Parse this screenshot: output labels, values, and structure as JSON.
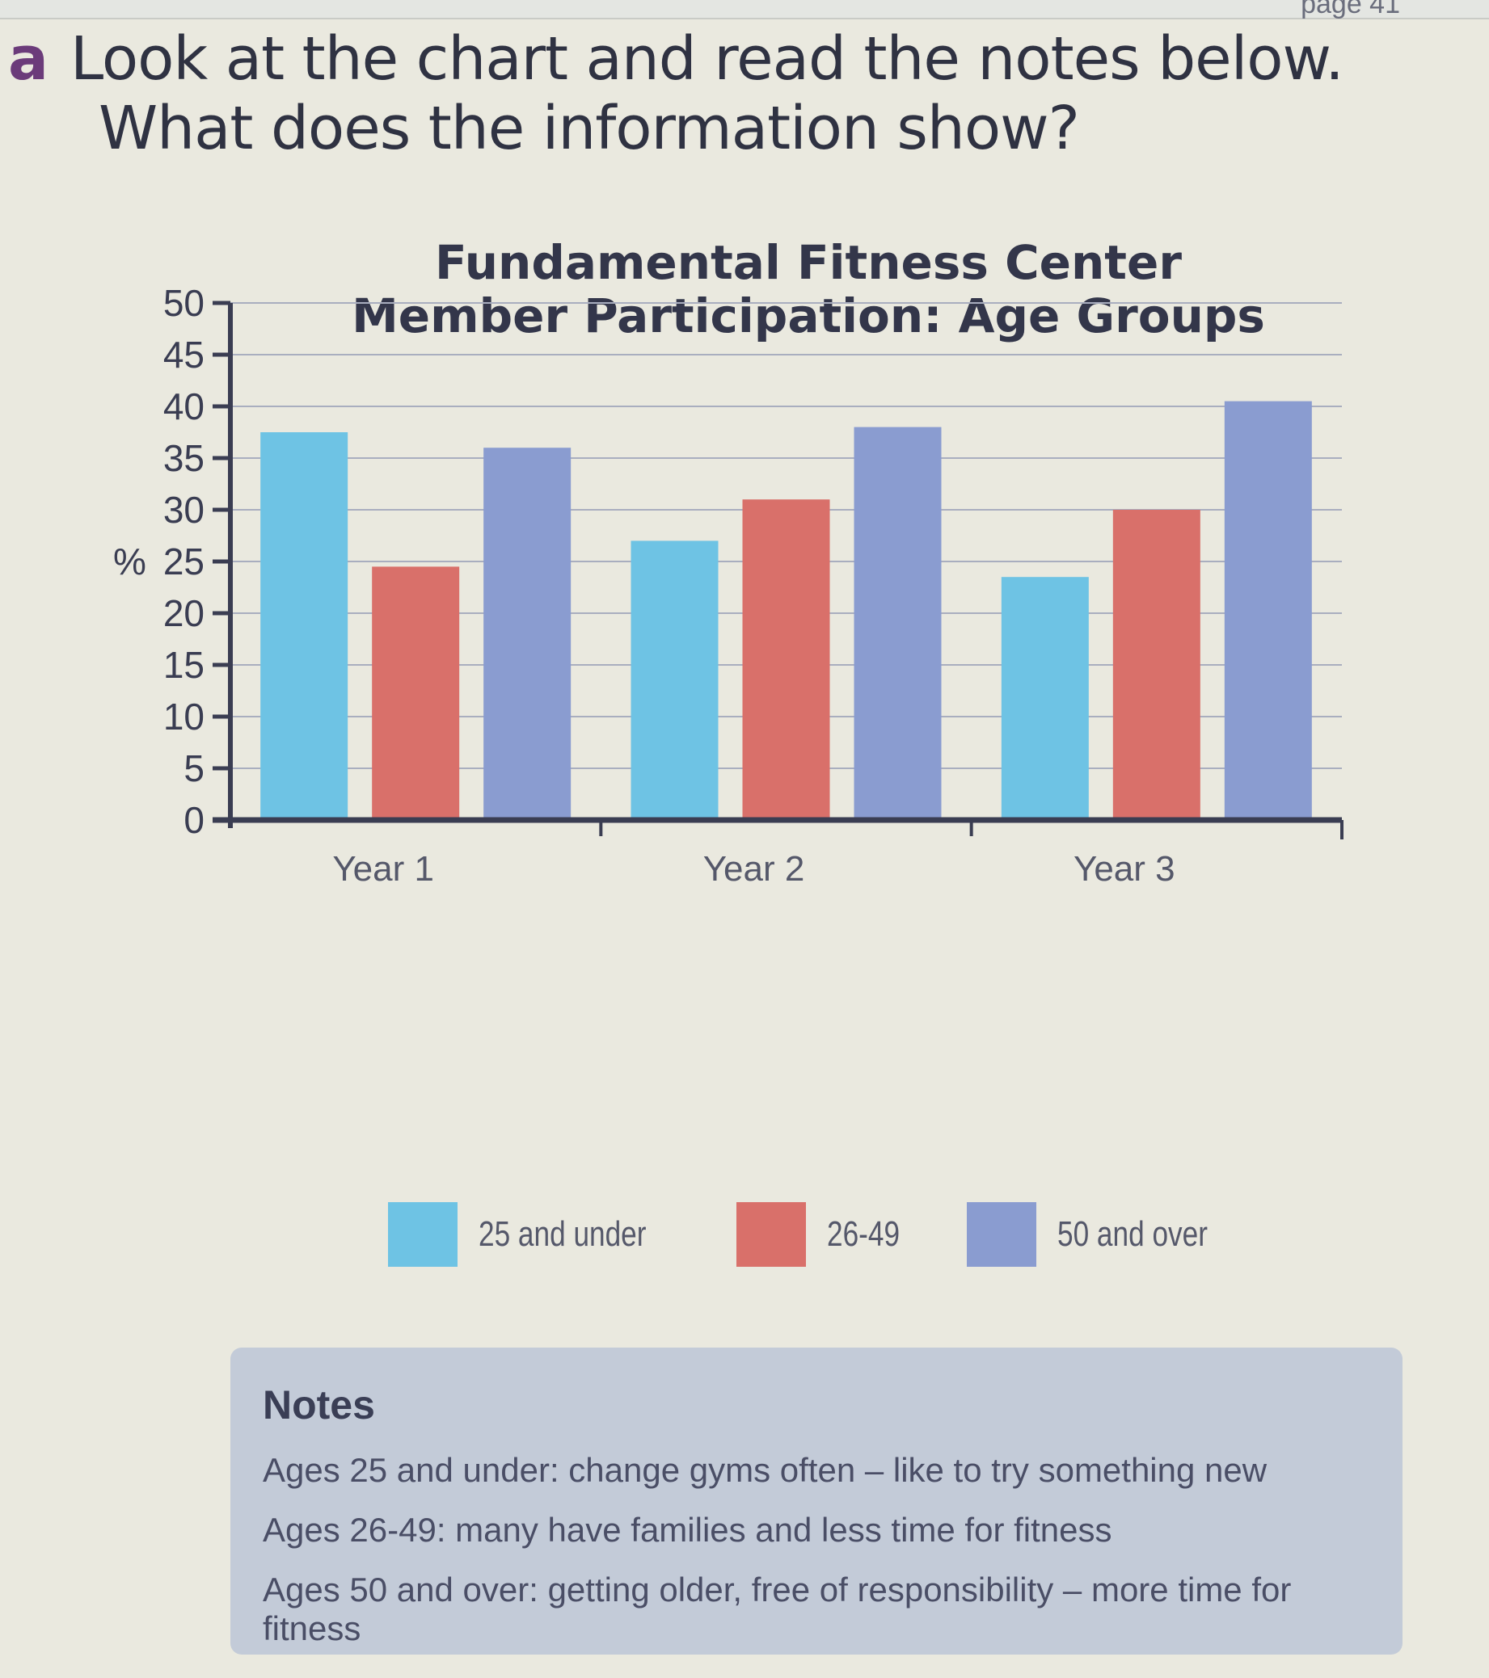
{
  "header": {
    "page_ref": "page 41"
  },
  "question": {
    "marker": "a",
    "line1": "Look at the chart and read the notes below.",
    "line2": "What does the information show?"
  },
  "chart": {
    "title_line1": "Fundamental Fitness Center",
    "title_line2": "Member Participation: Age Groups",
    "y_axis_label": "%"
  },
  "legend": {
    "items": [
      {
        "label": "25 and under",
        "color": "#6ec3e4"
      },
      {
        "label": "26-49",
        "color": "#d9706a"
      },
      {
        "label": "50 and over",
        "color": "#8a9cd0"
      }
    ]
  },
  "notes": {
    "title": "Notes",
    "lines": [
      "Ages 25 and under: change gyms often – like to try something new",
      "Ages 26-49: many have families and less time for fitness",
      "Ages 50 and over: getting older, free of responsibility – more time for fitness"
    ]
  },
  "chart_data": {
    "type": "bar",
    "title": "Fundamental Fitness Center Member Participation: Age Groups",
    "xlabel": "",
    "ylabel": "%",
    "categories": [
      "Year 1",
      "Year 2",
      "Year 3"
    ],
    "series": [
      {
        "name": "25 and under",
        "color": "#6ec3e4",
        "values": [
          37.5,
          27,
          23.5
        ]
      },
      {
        "name": "26-49",
        "color": "#d9706a",
        "values": [
          24.5,
          31,
          30
        ]
      },
      {
        "name": "50 and over",
        "color": "#8a9cd0",
        "values": [
          36,
          38,
          40.5
        ]
      }
    ],
    "yticks": [
      0,
      5,
      10,
      15,
      20,
      25,
      30,
      35,
      40,
      45,
      50
    ],
    "ylim": [
      0,
      50
    ],
    "grid": true,
    "legend_position": "bottom"
  }
}
